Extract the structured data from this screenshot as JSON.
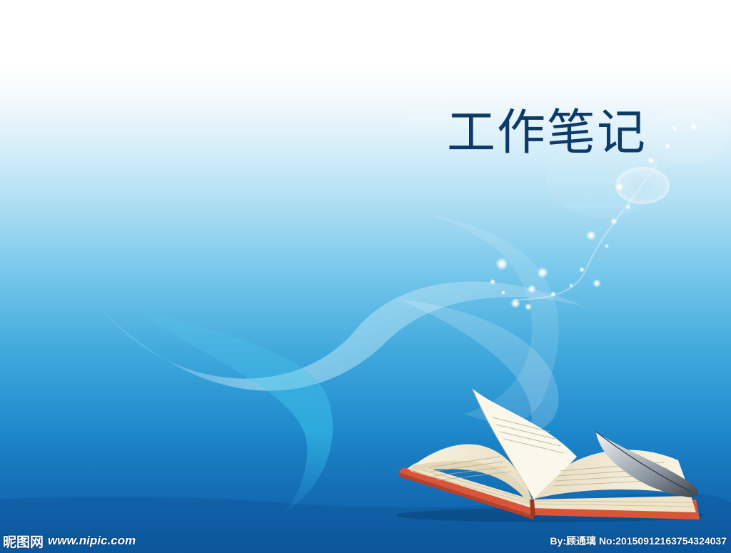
{
  "title": "工作笔记",
  "watermark": {
    "logo": "昵图网",
    "site": "www.nipic.com",
    "credit": "By:顾通璃 No:20150912163754324037"
  },
  "colors": {
    "title": "#0d3a66",
    "sky_top": "#ffffff",
    "sea_bottom": "#0f5fa6"
  },
  "illustration": {
    "book": "open-book-icon",
    "quill": "feather-quill-icon",
    "sparkles": "sparkle-trail-icon"
  }
}
